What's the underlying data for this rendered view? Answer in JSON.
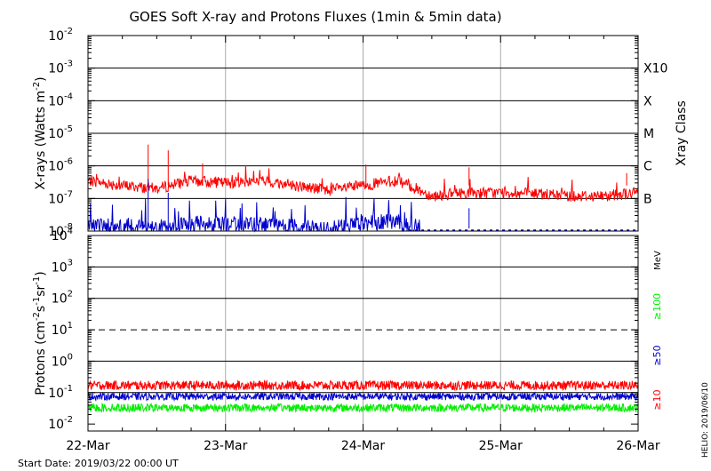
{
  "chart_data": [
    {
      "type": "line",
      "title": "GOES Soft X-ray and Protons Fluxes    (1min & 5min data)",
      "ylabel": "X-rays (Watts m^-2)",
      "ylabel_main": "X-rays (Watts m",
      "ylabel_unit_sup": "-2",
      "ylabel_close": ")",
      "y_scale": "log",
      "ylim": [
        1e-08,
        0.01
      ],
      "y_ticks": [
        {
          "base": "10",
          "exp": "-8"
        },
        {
          "base": "10",
          "exp": "-7"
        },
        {
          "base": "10",
          "exp": "-6"
        },
        {
          "base": "10",
          "exp": "-5"
        },
        {
          "base": "10",
          "exp": "-4"
        },
        {
          "base": "10",
          "exp": "-3"
        },
        {
          "base": "10",
          "exp": "-2"
        }
      ],
      "right_axis_label": "Xray Class",
      "class_labels": [
        {
          "label": "B",
          "level": 1e-07
        },
        {
          "label": "C",
          "level": 1e-06
        },
        {
          "label": "M",
          "level": 1e-05
        },
        {
          "label": "X",
          "level": 0.0001
        },
        {
          "label": "X10",
          "level": 0.001
        }
      ],
      "xlim": [
        "2019-03-22 00:00",
        "2019-03-26 00:00"
      ],
      "grid": true,
      "series": [
        {
          "color": "#ff0000",
          "x": [
            "2019-03-22 00:00",
            "2019-03-22 06:00",
            "2019-03-22 12:00",
            "2019-03-22 18:00",
            "2019-03-23 00:00",
            "2019-03-23 06:00",
            "2019-03-23 12:00",
            "2019-03-23 18:00",
            "2019-03-24 00:00",
            "2019-03-24 06:00",
            "2019-03-24 08:00",
            "2019-03-24 12:00",
            "2019-03-24 18:00",
            "2019-03-25 00:00",
            "2019-03-25 06:00",
            "2019-03-25 12:00",
            "2019-03-25 18:00",
            "2019-03-26 00:00"
          ],
          "values": [
            3.5e-07,
            2.5e-07,
            2e-07,
            3.5e-07,
            3e-07,
            3.5e-07,
            2.5e-07,
            1.8e-07,
            2.5e-07,
            3.5e-07,
            2.5e-07,
            1.2e-07,
            1.5e-07,
            1.5e-07,
            1.4e-07,
            1.2e-07,
            1.2e-07,
            1.5e-07
          ]
        },
        {
          "color": "#0000cc",
          "x": [
            "2019-03-22 00:00",
            "2019-03-22 06:00",
            "2019-03-22 12:00",
            "2019-03-22 18:00",
            "2019-03-23 00:00",
            "2019-03-23 06:00",
            "2019-03-23 12:00",
            "2019-03-23 18:00",
            "2019-03-24 00:00",
            "2019-03-24 06:00",
            "2019-03-24 08:00",
            "2019-03-24 12:00",
            "2019-03-24 18:00",
            "2019-03-25 00:00",
            "2019-03-25 06:00",
            "2019-03-25 12:00",
            "2019-03-25 18:00",
            "2019-03-26 00:00"
          ],
          "values": [
            1.6e-08,
            1.2e-08,
            1.1e-08,
            1.5e-08,
            1.5e-08,
            1.3e-08,
            1.2e-08,
            1e-08,
            1.5e-08,
            1.8e-08,
            1.2e-08,
            0,
            0,
            0,
            0,
            0,
            0,
            0
          ]
        }
      ],
      "spikes": [
        {
          "color": "#ff0000",
          "x": "2019-03-22 10:30",
          "y": 4.5e-06
        },
        {
          "color": "#ff0000",
          "x": "2019-03-22 14:00",
          "y": 3e-06
        },
        {
          "color": "#ff0000",
          "x": "2019-03-22 20:00",
          "y": 1.2e-06
        },
        {
          "color": "#ff0000",
          "x": "2019-03-24 00:30",
          "y": 1.1e-06
        },
        {
          "color": "#ff0000",
          "x": "2019-03-24 18:30",
          "y": 9e-07
        },
        {
          "color": "#ff0000",
          "x": "2019-03-25 22:00",
          "y": 6e-07
        },
        {
          "color": "#0000cc",
          "x": "2019-03-22 10:30",
          "y": 4e-07
        },
        {
          "color": "#0000cc",
          "x": "2019-03-22 14:00",
          "y": 1.5e-07
        },
        {
          "color": "#0000cc",
          "x": "2019-03-24 18:30",
          "y": 5e-08
        }
      ]
    },
    {
      "type": "line",
      "ylabel": "Protons (cm^-2 s^-1 sr^-1)",
      "y_scale": "log",
      "ylim": [
        0.006,
        10000
      ],
      "y_ticks": [
        {
          "base": "10",
          "exp": "-2"
        },
        {
          "base": "10",
          "exp": "-1"
        },
        {
          "base": "10",
          "exp": "0"
        },
        {
          "base": "10",
          "exp": "1"
        },
        {
          "base": "10",
          "exp": "2"
        },
        {
          "base": "10",
          "exp": "3"
        },
        {
          "base": "10",
          "exp": "4"
        }
      ],
      "threshold": {
        "value": 10,
        "style": "dashed"
      },
      "unit_label": "MeV",
      "xlim": [
        "2019-03-22 00:00",
        "2019-03-26 00:00"
      ],
      "x_ticks": [
        "22-Mar",
        "23-Mar",
        "24-Mar",
        "25-Mar",
        "26-Mar"
      ],
      "grid": true,
      "series": [
        {
          "name": "≥10",
          "color": "#ff0000",
          "level": 0.17,
          "spread": 1.4
        },
        {
          "name": "≥50",
          "color": "#0000cc",
          "level": 0.075,
          "spread": 1.3
        },
        {
          "name": "≥100",
          "color": "#00ee00",
          "level": 0.033,
          "spread": 1.35
        }
      ]
    }
  ],
  "footer": {
    "start_date": "Start Date: 2019/03/22 00:00 UT",
    "credit": "HELIO: 2019/06/10"
  }
}
